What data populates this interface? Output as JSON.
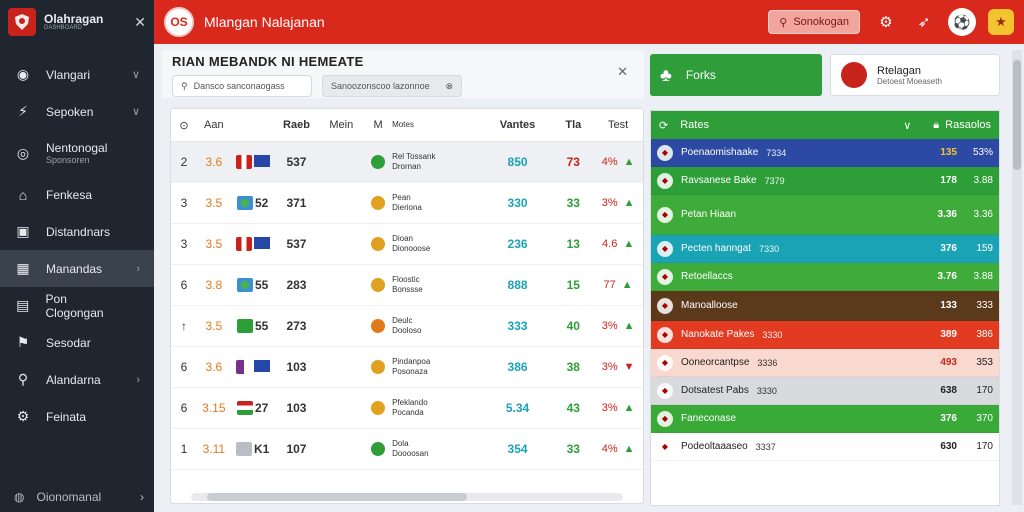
{
  "app": {
    "name": "Olahragan",
    "subtitle": "DASHBOARD"
  },
  "sidebar": {
    "items": [
      {
        "label": "Vlangari",
        "icon": "globe-icon",
        "chev": "∨"
      },
      {
        "label": "Sepoken",
        "icon": "bolt-icon",
        "chev": "∨"
      },
      {
        "label": "Nentonogal",
        "sub": "Sponsoren",
        "icon": "ball-icon",
        "chev": ""
      },
      {
        "label": "Fenkesa",
        "icon": "home-icon",
        "chev": ""
      },
      {
        "label": "Distandnars",
        "icon": "grid-icon",
        "chev": ""
      },
      {
        "label": "Manandas",
        "icon": "table-icon",
        "chev": "›"
      },
      {
        "label": "Pon Clogongan",
        "icon": "calendar-icon",
        "chev": ""
      },
      {
        "label": "Sesodar",
        "icon": "flag-icon",
        "chev": ""
      },
      {
        "label": "Alandarna",
        "icon": "search-icon",
        "chev": "›"
      },
      {
        "label": "Feinata",
        "icon": "settings-icon",
        "chev": ""
      }
    ],
    "footer": "Oionomanal"
  },
  "topbar": {
    "title": "Mlangan Nalajanan",
    "search_label": "Sonokogan",
    "logo_text": "OS"
  },
  "main": {
    "title": "RIAN MEBANDK NI HEMEATE",
    "search1": "Dansco sanconaogass",
    "search2": "Sanoozonscoo lazonnoe",
    "columns": [
      "Aan",
      "Raeb",
      "Mein",
      "M",
      "Motes",
      "Vantes",
      "Tla",
      "Test"
    ],
    "rows": [
      {
        "rank": "2",
        "pos": "3.6",
        "num": "537",
        "n1": "Rel Tossank",
        "n2": "Drornan",
        "v": "850",
        "g": "73",
        "p": "4%",
        "trend": "▲",
        "flag": "red",
        "cube": "blue",
        "dot": "#2e9f38"
      },
      {
        "rank": "3",
        "pos": "3.5",
        "num": "371",
        "n1": "Pean",
        "n2": "Dieriona",
        "v": "330",
        "g": "33",
        "p": "3%",
        "trend": "▲",
        "flag": "round",
        "cube": "52",
        "dot": "#e0a020"
      },
      {
        "rank": "3",
        "pos": "3.5",
        "num": "537",
        "n1": "Dioan",
        "n2": "Dionooose",
        "v": "236",
        "g": "13",
        "p": "4.6",
        "trend": "▲",
        "flag": "red",
        "cube": "blue",
        "dot": "#e0a020"
      },
      {
        "rank": "6",
        "pos": "3.8",
        "num": "283",
        "n1": "Floostic",
        "n2": "Bonssse",
        "v": "888",
        "g": "15",
        "p": "77",
        "trend": "▲",
        "flag": "round",
        "cube": "55",
        "dot": "#e0a020"
      },
      {
        "rank": "↑",
        "pos": "3.5",
        "num": "273",
        "n1": "Deulc",
        "n2": "Dooloso",
        "v": "333",
        "g": "40",
        "p": "3%",
        "trend": "▲",
        "flag": "green",
        "cube": "55",
        "dot": "#e27a1c"
      },
      {
        "rank": "6",
        "pos": "3.6",
        "num": "103",
        "n1": "Pindanpoa",
        "n2": "Posonaza",
        "v": "386",
        "g": "38",
        "p": "3%",
        "trend": "▼",
        "flag": "purple",
        "cube": "blue",
        "dot": "#e0a020"
      },
      {
        "rank": "6",
        "pos": "3.15",
        "num": "103",
        "n1": "Pfeklando",
        "n2": "Pocanda",
        "v": "5.34",
        "g": "43",
        "p": "3%",
        "trend": "▲",
        "flag": "stripe",
        "cube": "27",
        "dot": "#e0a020"
      },
      {
        "rank": "1",
        "pos": "3.11",
        "num": "107",
        "n1": "Dola",
        "n2": "Doooosan",
        "v": "354",
        "g": "33",
        "p": "4%",
        "trend": "▲",
        "flag": "gray",
        "cube": "K1",
        "dot": "#2e9f38"
      }
    ]
  },
  "right_panel": {
    "green_btn": "Forks",
    "user": {
      "name": "Rtelagan",
      "sub": "Detoest Moeaseth"
    },
    "header": {
      "left": "Rates",
      "right": "Rasaolos",
      "chev": "∨"
    },
    "rows": [
      {
        "name": "Poenaomishaake",
        "extra": "7334",
        "v1": "135",
        "v2": "53%",
        "bg": "#2c4aa3",
        "fg": "#ffffff",
        "h": 28
      },
      {
        "name": "Ravsanese Bake",
        "extra": "7379",
        "v1": "178",
        "v2": "3.88",
        "bg": "#2e9f38",
        "fg": "#ffffff",
        "h": 28
      },
      {
        "name": "Petan Hiaan",
        "extra": "",
        "v1": "3.36",
        "v2": "3.36",
        "bg": "#3fab3b",
        "fg": "#ffffff",
        "h": 40
      },
      {
        "name": "Pecten hanngat",
        "extra": "7330",
        "v1": "376",
        "v2": "159",
        "bg": "#1aa3b4",
        "fg": "#ffffff",
        "h": 28
      },
      {
        "name": "Retoellaccs",
        "extra": "",
        "v1": "3.76",
        "v2": "3.88",
        "bg": "#3fab3b",
        "fg": "#ffffff",
        "h": 28
      },
      {
        "name": "Manoalloose",
        "extra": "",
        "v1": "133",
        "v2": "333",
        "bg": "#5a3a1a",
        "fg": "#ffffff",
        "h": 30
      },
      {
        "name": "Nanokate Pakes",
        "extra": "3330",
        "v1": "389",
        "v2": "386",
        "bg": "#e33b22",
        "fg": "#ffffff",
        "h": 28
      },
      {
        "name": "Ooneorcantpse",
        "extra": "3336",
        "v1": "493",
        "v2": "353",
        "bg": "#f9d9cf",
        "fg": "#222222",
        "h": 28
      },
      {
        "name": "Dotsatest Pabs",
        "extra": "3330",
        "v1": "638",
        "v2": "170",
        "bg": "#d8dadd",
        "fg": "#222222",
        "h": 28
      },
      {
        "name": "Faneconase",
        "extra": "",
        "v1": "376",
        "v2": "370",
        "bg": "#39a937",
        "fg": "#ffffff",
        "h": 28
      },
      {
        "name": "Podeoltaaaseo",
        "extra": "3337",
        "v1": "630",
        "v2": "170",
        "bg": "#ffffff",
        "fg": "#222222",
        "h": 28
      }
    ]
  }
}
